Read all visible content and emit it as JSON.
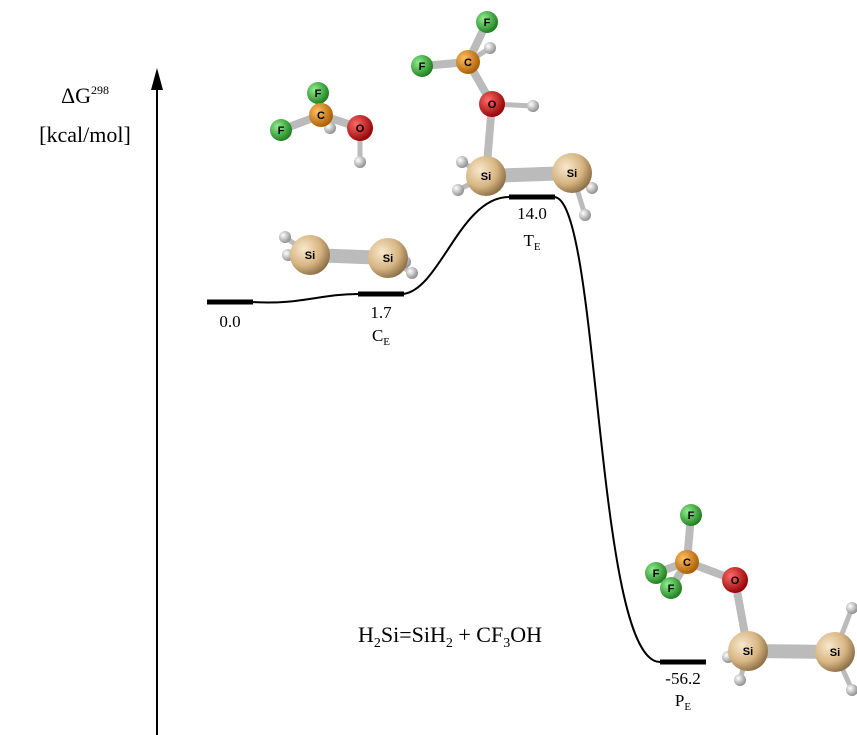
{
  "axis_label": {
    "symbol": "ΔG",
    "superscript": "298",
    "unit": "[kcal/mol]"
  },
  "levels": [
    {
      "energy": 0,
      "label": "0.0"
    },
    {
      "energy": 1.7,
      "label": "1.7",
      "state": "C",
      "state_sub": "E"
    },
    {
      "energy": 14.0,
      "label": "14.0",
      "state": "T",
      "state_sub": "E"
    },
    {
      "energy": -56.2,
      "label": "-56.2",
      "state": "P",
      "state_sub": "E"
    }
  ],
  "reaction": [
    "H",
    "2",
    "Si=SiH",
    "2",
    " + CF",
    "3",
    "OH"
  ],
  "molecules": [
    {
      "atoms": [
        "F",
        "F",
        "C",
        "O"
      ]
    },
    {
      "atoms": [
        "Si",
        "Si"
      ]
    },
    {
      "atoms": [
        "F",
        "F",
        "C",
        "O",
        "Si",
        "Si"
      ]
    },
    {
      "atoms": [
        "F",
        "F",
        "F",
        "C",
        "O",
        "Si",
        "Si"
      ]
    }
  ]
}
